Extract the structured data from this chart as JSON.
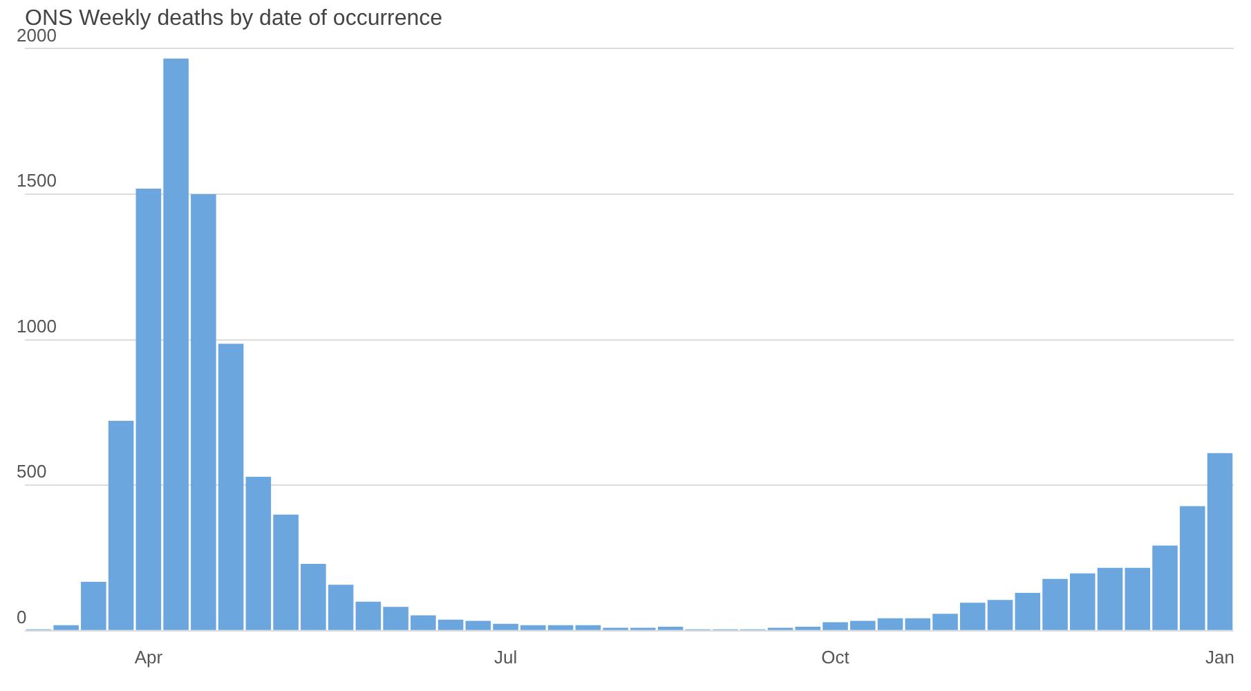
{
  "chart_data": {
    "type": "bar",
    "title": "ONS Weekly deaths by date of occurrence",
    "categories": [
      null,
      null,
      null,
      null,
      "Apr",
      null,
      null,
      null,
      null,
      null,
      null,
      null,
      null,
      null,
      null,
      null,
      null,
      "Jul",
      null,
      null,
      null,
      null,
      null,
      null,
      null,
      null,
      null,
      null,
      null,
      "Oct",
      null,
      null,
      null,
      null,
      null,
      null,
      null,
      null,
      null,
      null,
      null,
      null,
      null,
      "Jan"
    ],
    "values": [
      5,
      19,
      168,
      721,
      1519,
      1966,
      1500,
      986,
      529,
      399,
      230,
      158,
      100,
      82,
      53,
      38,
      34,
      24,
      19,
      19,
      19,
      10,
      10,
      14,
      5,
      5,
      5,
      10,
      14,
      29,
      34,
      43,
      43,
      58,
      96,
      106,
      130,
      178,
      197,
      216,
      216,
      293,
      428,
      610
    ],
    "color": "#6ca6de",
    "ylim": [
      0,
      2000
    ],
    "yticks": [
      0,
      500,
      1000,
      1500,
      2000
    ],
    "grid": "y"
  }
}
